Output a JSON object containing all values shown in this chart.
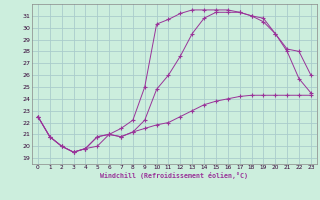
{
  "xlabel": "Windchill (Refroidissement éolien,°C)",
  "bg_color": "#cceedd",
  "grid_color": "#aacccc",
  "line_color": "#993399",
  "xlim": [
    -0.5,
    23.5
  ],
  "ylim": [
    18.5,
    32.0
  ],
  "yticks": [
    19,
    20,
    21,
    22,
    23,
    24,
    25,
    26,
    27,
    28,
    29,
    30,
    31
  ],
  "xticks": [
    0,
    1,
    2,
    3,
    4,
    5,
    6,
    7,
    8,
    9,
    10,
    11,
    12,
    13,
    14,
    15,
    16,
    17,
    18,
    19,
    20,
    21,
    22,
    23
  ],
  "line1_x": [
    0,
    1,
    2,
    3,
    4,
    5,
    6,
    7,
    8,
    9,
    10,
    11,
    12,
    13,
    14,
    15,
    16,
    17,
    18,
    19,
    20,
    21,
    22,
    23
  ],
  "line1_y": [
    22.5,
    20.8,
    20.0,
    19.5,
    19.8,
    20.0,
    21.0,
    20.8,
    21.2,
    21.5,
    21.8,
    22.0,
    22.5,
    23.0,
    23.5,
    23.8,
    24.0,
    24.2,
    24.3,
    24.3,
    24.3,
    24.3,
    24.3,
    24.3
  ],
  "line2_x": [
    0,
    1,
    2,
    3,
    4,
    5,
    6,
    7,
    8,
    9,
    10,
    11,
    12,
    13,
    14,
    15,
    16,
    17,
    18,
    19,
    20,
    21,
    22,
    23
  ],
  "line2_y": [
    22.5,
    20.8,
    20.0,
    19.5,
    19.8,
    20.8,
    21.0,
    21.5,
    22.2,
    25.0,
    30.3,
    30.7,
    31.2,
    31.5,
    31.5,
    31.5,
    31.5,
    31.3,
    31.0,
    30.8,
    29.5,
    28.0,
    25.7,
    24.5
  ],
  "line3_x": [
    0,
    1,
    2,
    3,
    4,
    5,
    6,
    7,
    8,
    9,
    10,
    11,
    12,
    13,
    14,
    15,
    16,
    17,
    18,
    19,
    20,
    21,
    22,
    23
  ],
  "line3_y": [
    22.5,
    20.8,
    20.0,
    19.5,
    19.8,
    20.8,
    21.0,
    20.8,
    21.2,
    22.2,
    24.8,
    26.0,
    27.6,
    29.5,
    30.8,
    31.3,
    31.3,
    31.3,
    31.0,
    30.5,
    29.5,
    28.2,
    28.0,
    26.0
  ]
}
